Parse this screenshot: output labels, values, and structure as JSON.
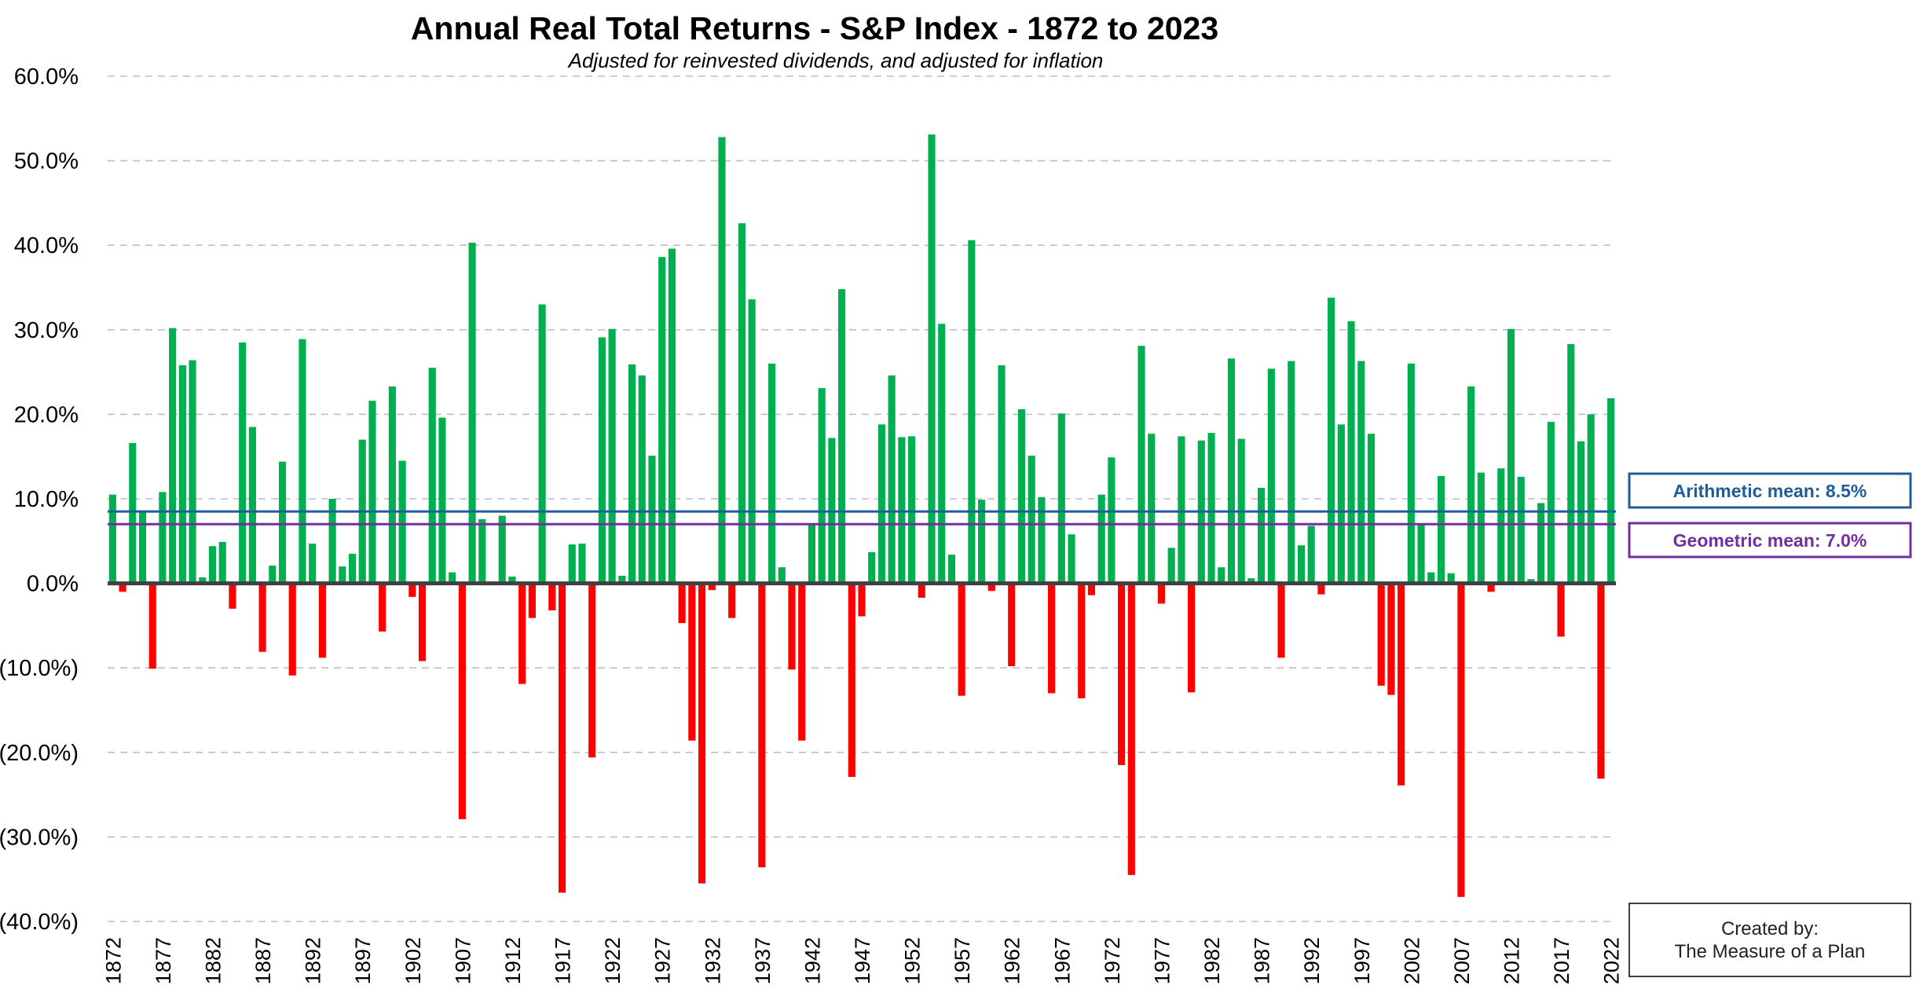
{
  "chart_data": {
    "type": "bar",
    "title": "Annual Real Total Returns - S&P Index - 1872 to 2023",
    "subtitle": "Adjusted for reinvested dividends, and adjusted for inflation",
    "xlabel": "",
    "ylabel": "",
    "ylim": [
      -40,
      60
    ],
    "y_ticks": [
      "60.0%",
      "50.0%",
      "40.0%",
      "30.0%",
      "20.0%",
      "10.0%",
      "0.0%",
      "(10.0%)",
      "(20.0%)",
      "(30.0%)",
      "(40.0%)"
    ],
    "y_tick_values": [
      60,
      50,
      40,
      30,
      20,
      10,
      0,
      -10,
      -20,
      -30,
      -40
    ],
    "x_ticks": [
      "1872",
      "1877",
      "1882",
      "1887",
      "1892",
      "1897",
      "1902",
      "1907",
      "1912",
      "1917",
      "1922",
      "1927",
      "1932",
      "1937",
      "1942",
      "1947",
      "1952",
      "1957",
      "1962",
      "1967",
      "1972",
      "1977",
      "1982",
      "1987",
      "1992",
      "1997",
      "2002",
      "2007",
      "2012",
      "2017",
      "2022"
    ],
    "grid": "horizontal dashed",
    "first_year": 1872,
    "positive_color": "#00B050",
    "negative_color": "#FF0000",
    "values": [
      10.5,
      -1.0,
      16.6,
      8.5,
      -10.1,
      10.8,
      30.2,
      25.8,
      26.4,
      0.7,
      4.4,
      4.9,
      -3.0,
      28.5,
      18.5,
      -8.1,
      2.1,
      14.4,
      -10.9,
      28.9,
      4.7,
      -8.8,
      10.0,
      2.0,
      3.5,
      17.0,
      21.6,
      -5.7,
      23.3,
      14.5,
      -1.6,
      -9.2,
      25.5,
      19.6,
      1.3,
      -27.9,
      40.3,
      7.6,
      0.2,
      8.0,
      0.8,
      -11.9,
      -4.1,
      33.0,
      -3.2,
      -36.6,
      4.6,
      4.7,
      -20.6,
      29.1,
      30.1,
      0.9,
      25.9,
      24.6,
      15.1,
      38.6,
      39.6,
      -4.7,
      -18.6,
      -35.5,
      -0.8,
      52.8,
      -4.1,
      42.6,
      33.6,
      -33.6,
      26.0,
      1.9,
      -10.2,
      -18.6,
      7.1,
      23.1,
      17.2,
      34.8,
      -22.9,
      -3.9,
      3.7,
      18.8,
      24.6,
      17.3,
      17.4,
      -1.7,
      53.1,
      30.7,
      3.4,
      -13.3,
      40.6,
      9.9,
      -0.9,
      25.8,
      -9.8,
      20.6,
      15.1,
      10.2,
      -13.0,
      20.1,
      5.8,
      -13.6,
      -1.4,
      10.5,
      14.9,
      -21.5,
      -34.5,
      28.1,
      17.7,
      -2.4,
      4.2,
      17.4,
      -12.9,
      16.9,
      17.8,
      1.9,
      26.6,
      17.1,
      0.6,
      11.3,
      25.4,
      -8.8,
      26.3,
      4.5,
      6.8,
      -1.3,
      33.8,
      18.8,
      31.0,
      26.3,
      17.7,
      -12.1,
      -13.2,
      -23.9,
      26.0,
      7.1,
      1.3,
      12.7,
      1.2,
      -37.1,
      23.3,
      13.1,
      -1.0,
      13.6,
      30.1,
      12.6,
      0.5,
      9.5,
      19.1,
      -6.3,
      28.3,
      16.8,
      20.0,
      -23.1,
      21.9
    ],
    "series": [
      {
        "name": "Arithmetic mean: 8.5%",
        "value": 8.5,
        "color": "#1F5C99"
      },
      {
        "name": "Geometric mean: 7.0%",
        "value": 7.0,
        "color": "#7030A0"
      }
    ],
    "annotation": [
      "Created by:",
      "The Measure of a Plan"
    ]
  },
  "colors": {
    "zero_line": "#404040",
    "grid": "#BFBFBF",
    "note_border": "#404040"
  }
}
